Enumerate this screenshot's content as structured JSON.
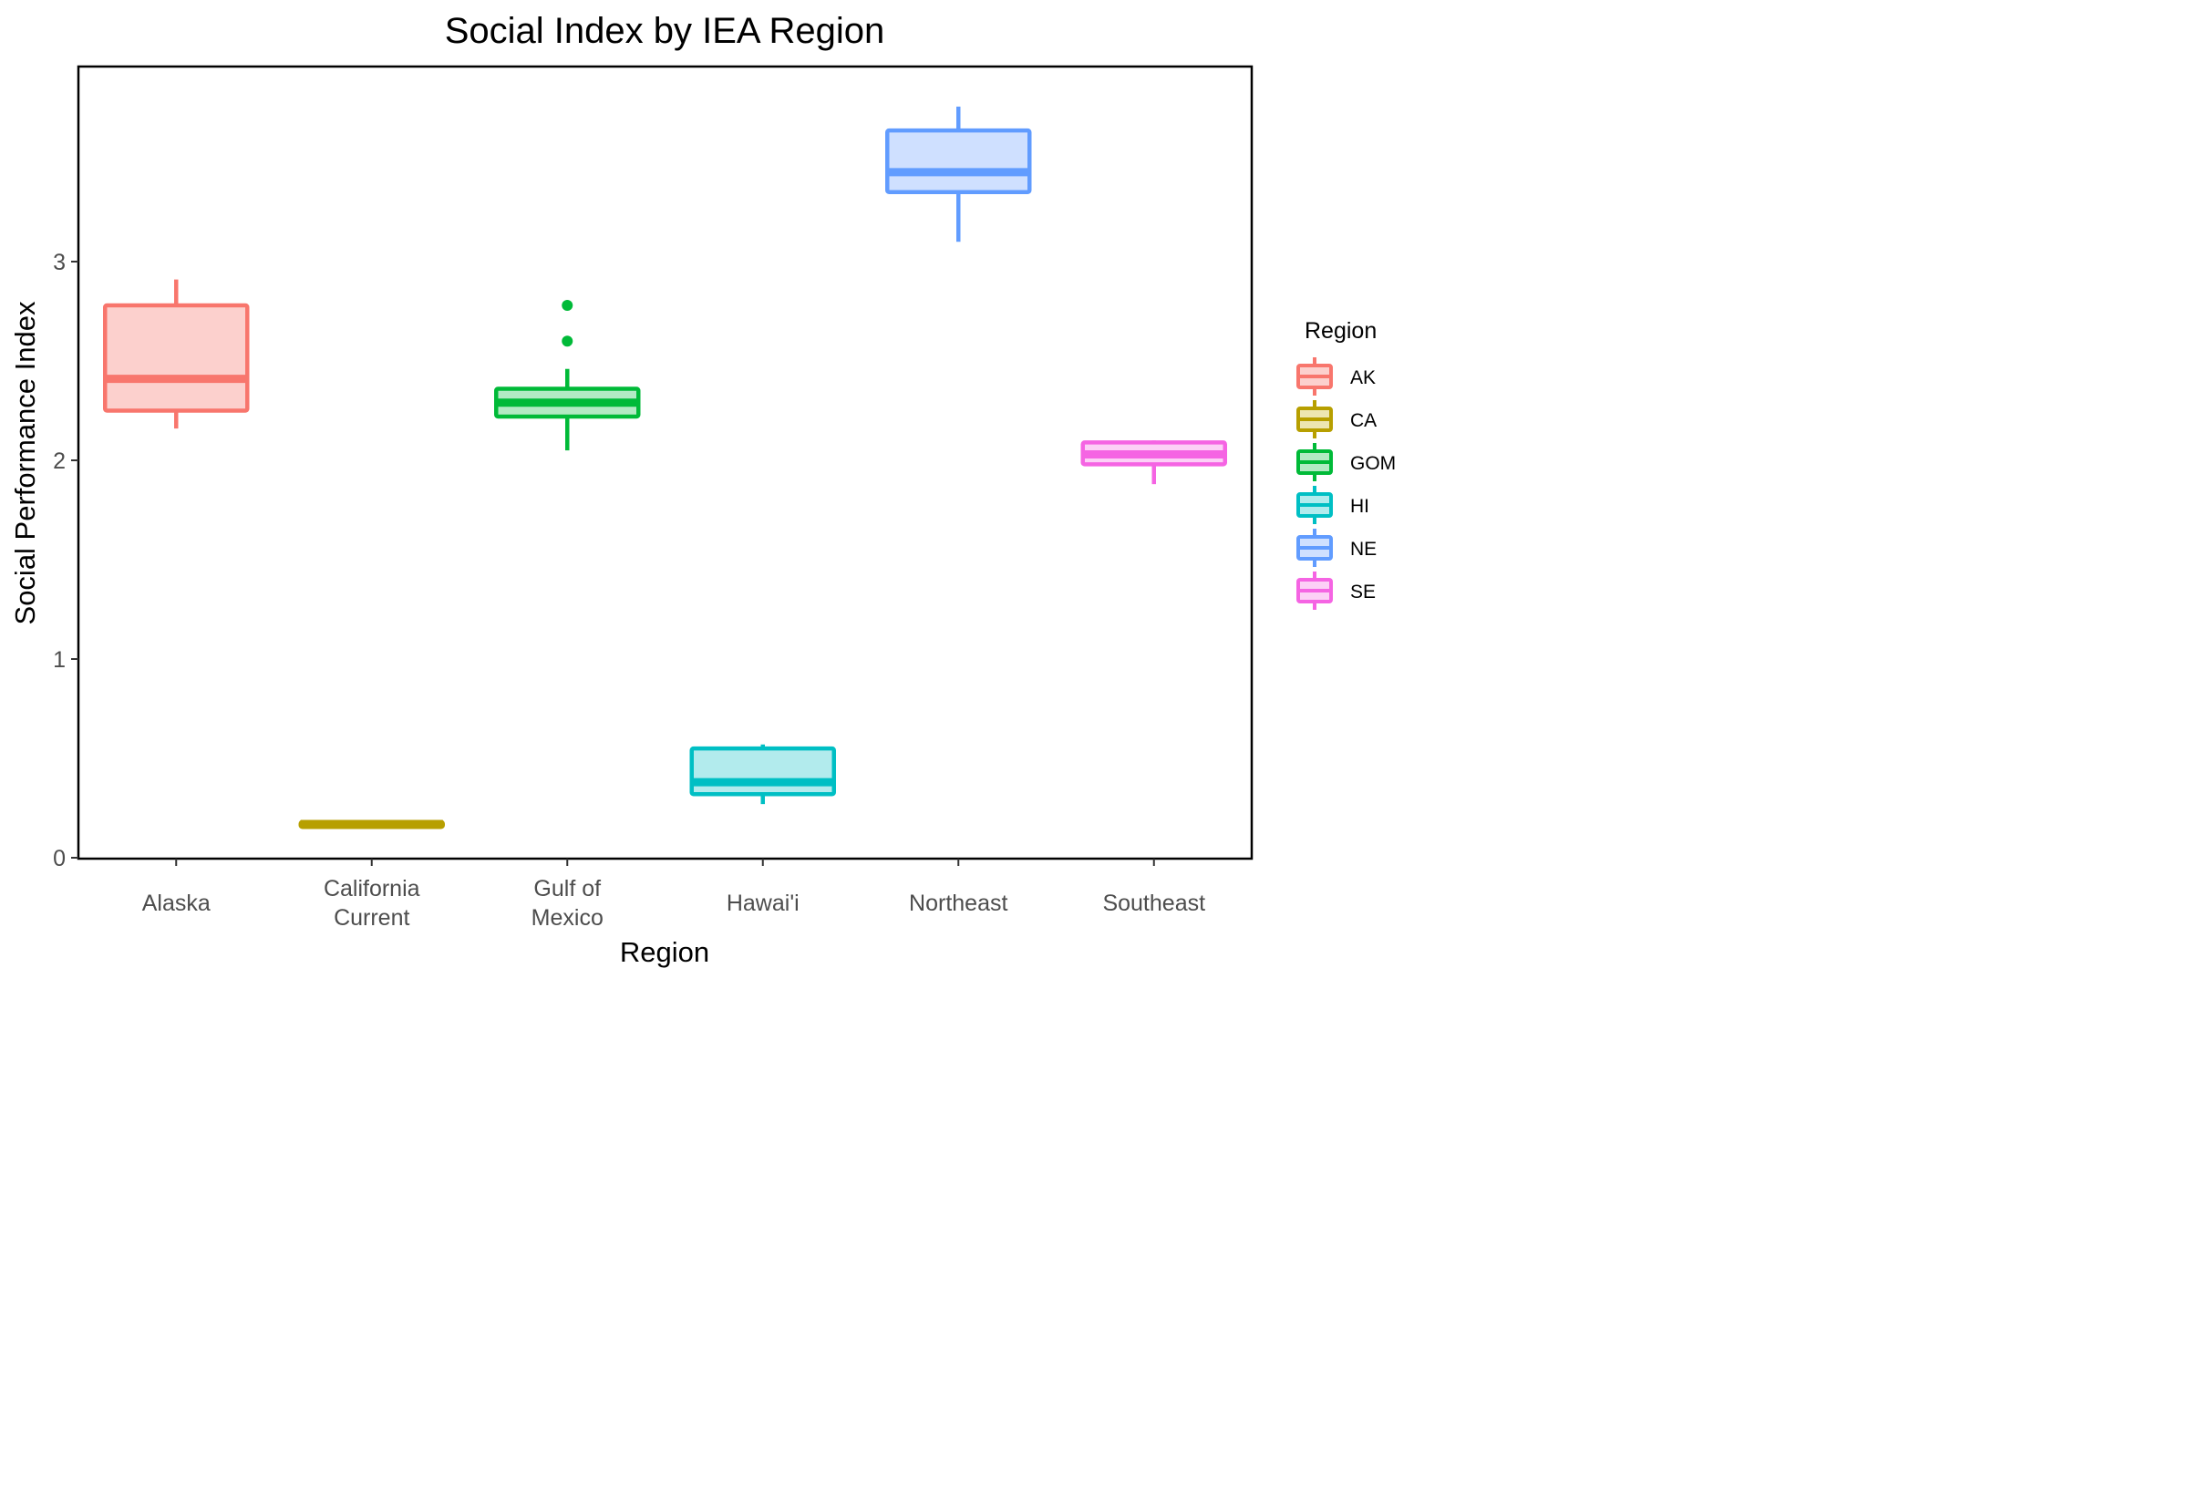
{
  "chart_data": {
    "type": "box",
    "title": "Social Index by IEA Region",
    "xlabel": "Region",
    "ylabel": "Social Performance Index",
    "ylim": [
      0,
      3.9
    ],
    "yticks": [
      0,
      1,
      2,
      3
    ],
    "grid": false,
    "legend_position": "right",
    "legend_title": "Region",
    "categories": [
      {
        "label": [
          "Alaska"
        ],
        "code": "AK",
        "color": "#F8766D",
        "fill": "#FCD0CD",
        "whisker_low": 2.16,
        "q1": 2.25,
        "median": 2.41,
        "q3": 2.78,
        "whisker_high": 2.91,
        "outliers": []
      },
      {
        "label": [
          "California",
          "Current"
        ],
        "code": "CA",
        "color": "#B79F00",
        "fill": "#EDE6B2",
        "whisker_low": 0.155,
        "q1": 0.155,
        "median": 0.17,
        "q3": 0.18,
        "whisker_high": 0.18,
        "outliers": []
      },
      {
        "label": [
          "Gulf of",
          "Mexico"
        ],
        "code": "GOM",
        "color": "#00BA38",
        "fill": "#B2EAC3",
        "whisker_low": 2.05,
        "q1": 2.22,
        "median": 2.29,
        "q3": 2.36,
        "whisker_high": 2.46,
        "outliers": [
          2.6,
          2.78
        ]
      },
      {
        "label": [
          "Hawai'i"
        ],
        "code": "HI",
        "color": "#00BFC4",
        "fill": "#B2EBED",
        "whisker_low": 0.27,
        "q1": 0.32,
        "median": 0.38,
        "q3": 0.55,
        "whisker_high": 0.57,
        "outliers": []
      },
      {
        "label": [
          "Northeast"
        ],
        "code": "NE",
        "color": "#619CFF",
        "fill": "#CFE0FF",
        "whisker_low": 3.1,
        "q1": 3.35,
        "median": 3.45,
        "q3": 3.66,
        "whisker_high": 3.78,
        "outliers": []
      },
      {
        "label": [
          "Southeast"
        ],
        "code": "SE",
        "color": "#F564E3",
        "fill": "#FCD0F6",
        "whisker_low": 1.88,
        "q1": 1.98,
        "median": 2.03,
        "q3": 2.09,
        "whisker_high": 2.1,
        "outliers": []
      }
    ]
  }
}
